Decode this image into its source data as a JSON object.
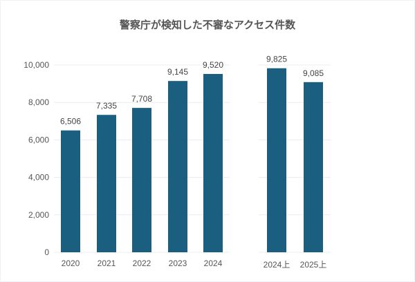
{
  "chart_data": [
    {
      "type": "bar",
      "title": "警察庁が検知した不審なアクセス件数",
      "categories": [
        "2020",
        "2021",
        "2022",
        "2023",
        "2024"
      ],
      "values": [
        6506,
        7335,
        7708,
        9145,
        9520
      ],
      "data_labels": [
        "6,506",
        "7,335",
        "7,708",
        "9,145",
        "9,520"
      ],
      "ylim": [
        0,
        10000
      ],
      "yticks": [
        "0",
        "2,000",
        "4,000",
        "6,000",
        "8,000",
        "10,000"
      ],
      "grid": true,
      "bar_color": "#1a5e80"
    },
    {
      "type": "bar",
      "categories": [
        "2024上",
        "2025上"
      ],
      "values": [
        9825,
        9085
      ],
      "data_labels": [
        "9,825",
        "9,085"
      ],
      "ylim": [
        0,
        10000
      ],
      "grid": true,
      "bar_color": "#1a5e80"
    }
  ]
}
